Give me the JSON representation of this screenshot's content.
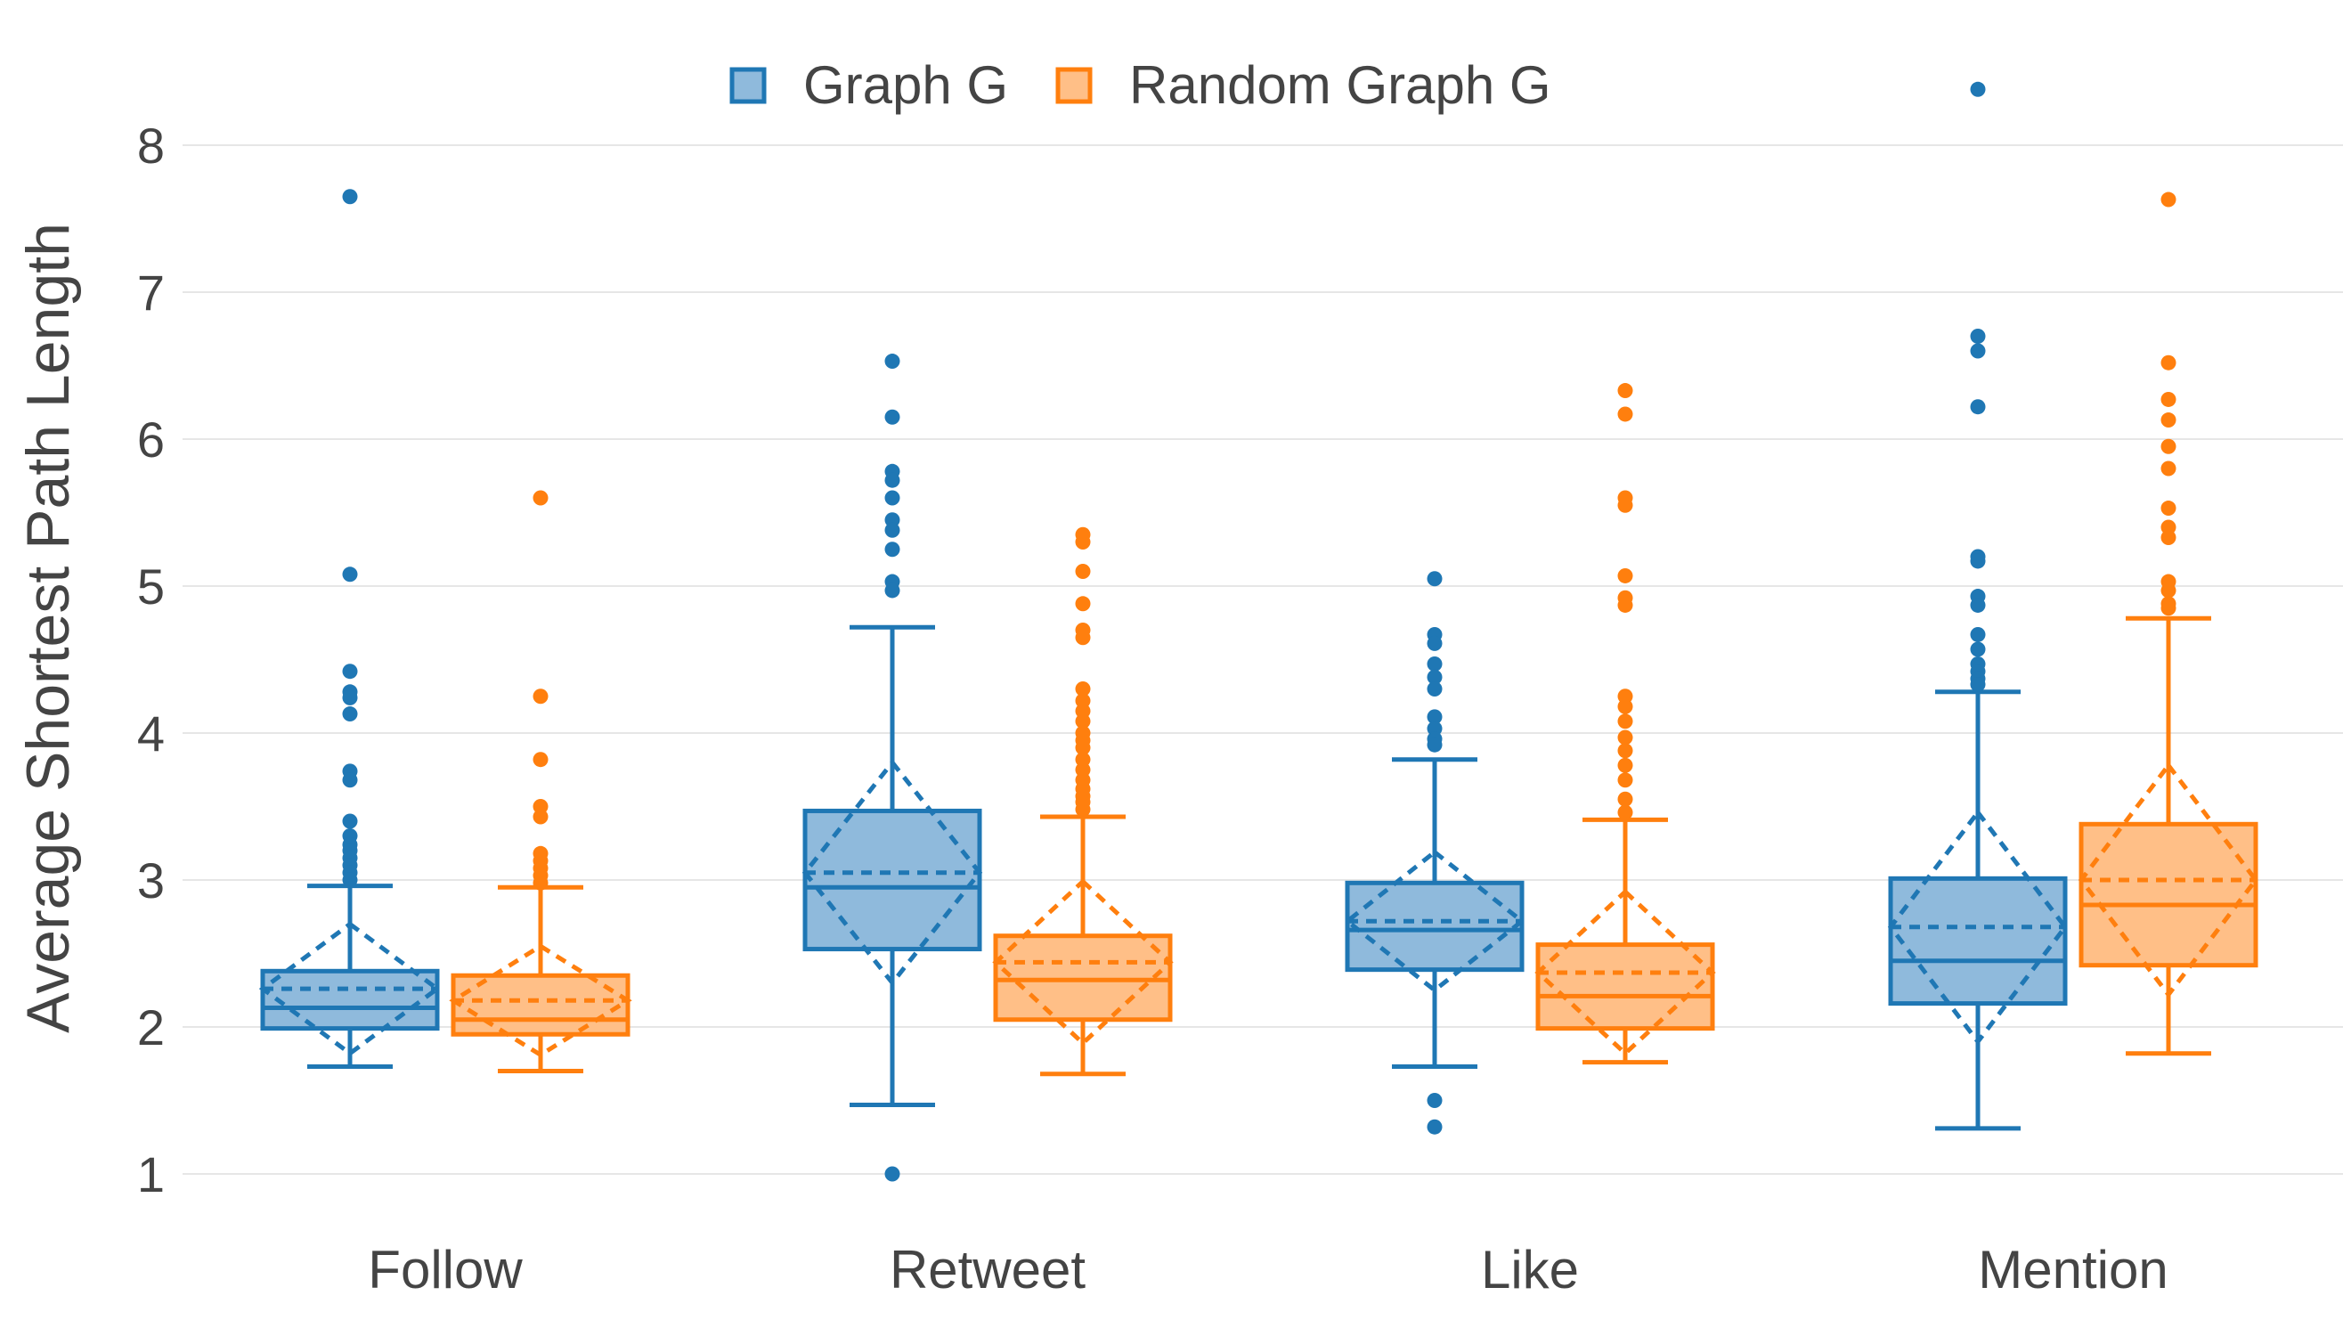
{
  "chart_data": {
    "type": "box",
    "title": "",
    "xlabel": "",
    "ylabel": "Average Shortest Path Length",
    "ylim": [
      0.7,
      8.3
    ],
    "yticks": [
      1,
      2,
      3,
      4,
      5,
      6,
      7,
      8
    ],
    "grid": "horizontal",
    "legend_position": "top-center",
    "categories": [
      "Follow",
      "Retweet",
      "Like",
      "Mention"
    ],
    "series": [
      {
        "name": "Graph G",
        "color": "#1f77b4",
        "fill": "#8fbadc",
        "boxes": [
          {
            "q1": 1.99,
            "median": 2.13,
            "q3": 2.38,
            "mean": 2.26,
            "sd": 0.44,
            "lower_whisker": 1.73,
            "upper_whisker": 2.96,
            "outliers": [
              7.65,
              5.08,
              4.42,
              4.28,
              4.24,
              4.13,
              3.74,
              3.68,
              3.4,
              3.3,
              3.24,
              3.2,
              3.15,
              3.1,
              3.05,
              3.0
            ]
          },
          {
            "q1": 2.53,
            "median": 2.95,
            "q3": 3.47,
            "mean": 3.05,
            "sd": 0.75,
            "lower_whisker": 1.47,
            "upper_whisker": 4.72,
            "outliers": [
              6.53,
              6.15,
              5.78,
              5.72,
              5.6,
              5.45,
              5.38,
              5.25,
              5.03,
              4.97,
              1.0
            ]
          },
          {
            "q1": 2.39,
            "median": 2.66,
            "q3": 2.98,
            "mean": 2.72,
            "sd": 0.47,
            "lower_whisker": 1.73,
            "upper_whisker": 3.82,
            "outliers": [
              5.05,
              4.67,
              4.61,
              4.47,
              4.38,
              4.3,
              4.11,
              4.03,
              3.96,
              3.92,
              1.5,
              1.32
            ]
          },
          {
            "q1": 2.16,
            "median": 2.45,
            "q3": 3.01,
            "mean": 2.68,
            "sd": 0.78,
            "lower_whisker": 1.31,
            "upper_whisker": 4.28,
            "outliers": [
              8.38,
              6.7,
              6.6,
              6.22,
              5.2,
              5.17,
              4.93,
              4.87,
              4.67,
              4.57,
              4.47,
              4.42,
              4.37,
              4.33
            ]
          }
        ]
      },
      {
        "name": "Random Graph G",
        "color": "#ff7f0e",
        "fill": "#ffbf87",
        "boxes": [
          {
            "q1": 1.95,
            "median": 2.05,
            "q3": 2.35,
            "mean": 2.18,
            "sd": 0.37,
            "lower_whisker": 1.7,
            "upper_whisker": 2.95,
            "outliers": [
              5.6,
              4.25,
              3.82,
              3.5,
              3.43,
              3.18,
              3.13,
              3.08,
              3.03,
              2.98
            ]
          },
          {
            "q1": 2.05,
            "median": 2.32,
            "q3": 2.62,
            "mean": 2.44,
            "sd": 0.55,
            "lower_whisker": 1.68,
            "upper_whisker": 3.43,
            "outliers": [
              5.35,
              5.3,
              5.1,
              4.88,
              4.7,
              4.65,
              4.3,
              4.22,
              4.15,
              4.08,
              4.0,
              3.95,
              3.9,
              3.82,
              3.75,
              3.68,
              3.62,
              3.57,
              3.53,
              3.48
            ]
          },
          {
            "q1": 1.99,
            "median": 2.21,
            "q3": 2.56,
            "mean": 2.37,
            "sd": 0.55,
            "lower_whisker": 1.76,
            "upper_whisker": 3.41,
            "outliers": [
              6.33,
              6.17,
              5.6,
              5.55,
              5.07,
              4.92,
              4.87,
              4.25,
              4.18,
              4.08,
              3.97,
              3.88,
              3.78,
              3.68,
              3.55,
              3.46
            ]
          },
          {
            "q1": 2.42,
            "median": 2.83,
            "q3": 3.38,
            "mean": 3.0,
            "sd": 0.78,
            "lower_whisker": 1.82,
            "upper_whisker": 4.78,
            "outliers": [
              7.63,
              6.52,
              6.27,
              6.13,
              5.95,
              5.8,
              5.53,
              5.4,
              5.33,
              5.03,
              4.97,
              4.88,
              4.85
            ]
          }
        ]
      }
    ]
  }
}
